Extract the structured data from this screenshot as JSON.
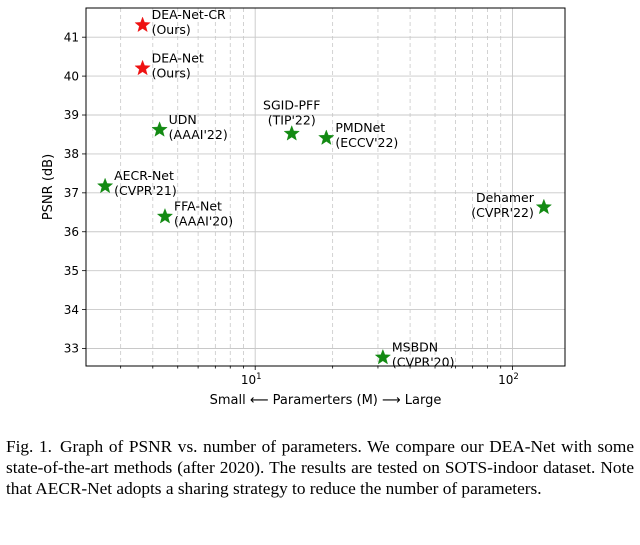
{
  "chart_data": {
    "type": "scatter",
    "xscale": "log",
    "xlabel": "Small ⟵ Paramerters (M) ⟶ Large",
    "ylabel": "PSNR (dB)",
    "xlim": [
      2.2,
      160
    ],
    "ylim": [
      32.55,
      41.75
    ],
    "xticks": [
      {
        "value": 10,
        "base": "10",
        "exp": "1"
      },
      {
        "value": 100,
        "base": "10",
        "exp": "2"
      }
    ],
    "yticks": [
      33,
      34,
      35,
      36,
      37,
      38,
      39,
      40,
      41
    ],
    "grid": true,
    "points": [
      {
        "name": "DEA-Net-CR",
        "lines": [
          "DEA-Net-CR",
          "(Ours)"
        ],
        "x": 3.65,
        "y": 41.31,
        "color": "#ee1111",
        "label_anchor": "right"
      },
      {
        "name": "DEA-Net",
        "lines": [
          "DEA-Net",
          "(Ours)"
        ],
        "x": 3.65,
        "y": 40.2,
        "color": "#ee1111",
        "label_anchor": "right"
      },
      {
        "name": "UDN",
        "lines": [
          "UDN",
          "(AAAI'22)"
        ],
        "x": 4.25,
        "y": 38.62,
        "color": "#138a13",
        "label_anchor": "right"
      },
      {
        "name": "SGID-PFF",
        "lines": [
          "SGID-PFF",
          "(TIP'22)"
        ],
        "x": 13.87,
        "y": 38.52,
        "color": "#138a13",
        "label_anchor": "above"
      },
      {
        "name": "PMDNet",
        "lines": [
          "PMDNet",
          "(ECCV'22)"
        ],
        "x": 18.9,
        "y": 38.41,
        "color": "#138a13",
        "label_anchor": "right"
      },
      {
        "name": "AECR-Net",
        "lines": [
          "AECR-Net",
          "(CVPR'21)"
        ],
        "x": 2.61,
        "y": 37.17,
        "color": "#138a13",
        "label_anchor": "right"
      },
      {
        "name": "FFA-Net",
        "lines": [
          "FFA-Net",
          "(AAAI'20)"
        ],
        "x": 4.46,
        "y": 36.39,
        "color": "#138a13",
        "label_anchor": "right"
      },
      {
        "name": "Dehamer",
        "lines": [
          "Dehamer",
          "(CVPR'22)"
        ],
        "x": 132.45,
        "y": 36.63,
        "color": "#138a13",
        "label_anchor": "left"
      },
      {
        "name": "MSBDN",
        "lines": [
          "MSBDN",
          "(CVPR'20)"
        ],
        "x": 31.35,
        "y": 32.77,
        "color": "#138a13",
        "label_anchor": "right"
      }
    ]
  },
  "caption": {
    "fig_num": "Fig. 1.",
    "text": "Graph of PSNR vs. number of parameters. We compare our DEA-Net with some state-of-the-art methods (after 2020). The results are tested on SOTS-indoor dataset. Note that AECR-Net adopts a sharing strategy to reduce the number of parameters."
  }
}
